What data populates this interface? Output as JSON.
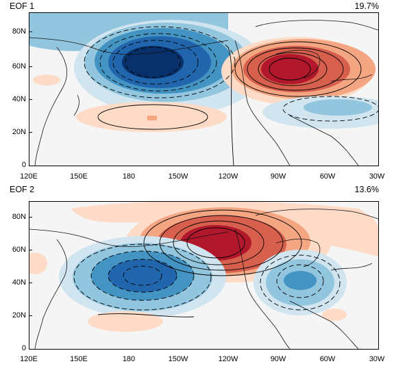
{
  "panels": [
    {
      "id": "eof1",
      "title": "EOF 1",
      "variance": "19.7%",
      "y_labels": [
        "80N",
        "60N",
        "40N",
        "20N",
        "0"
      ],
      "x_labels": [
        "120E",
        "150E",
        "180",
        "150W",
        "120W",
        "90W",
        "60W",
        "30W"
      ]
    },
    {
      "id": "eof2",
      "title": "EOF 2",
      "variance": "13.6%",
      "y_labels": [
        "80N",
        "60N",
        "40N",
        "20N",
        "0"
      ],
      "x_labels": [
        "120E",
        "150E",
        "180",
        "150W",
        "120W",
        "90W",
        "60W",
        "30W"
      ]
    }
  ],
  "colors": {
    "neg_strong": "#08306b",
    "neg": "#2166ac",
    "neg_mid": "#4393c3",
    "neg_light": "#92c5de",
    "neg_pale": "#d1e5f0",
    "pos_pale": "#fddbc7",
    "pos_light": "#f4a582",
    "pos": "#d6604d",
    "pos_strong": "#b2182b",
    "neutral": "#f5f5f5"
  }
}
